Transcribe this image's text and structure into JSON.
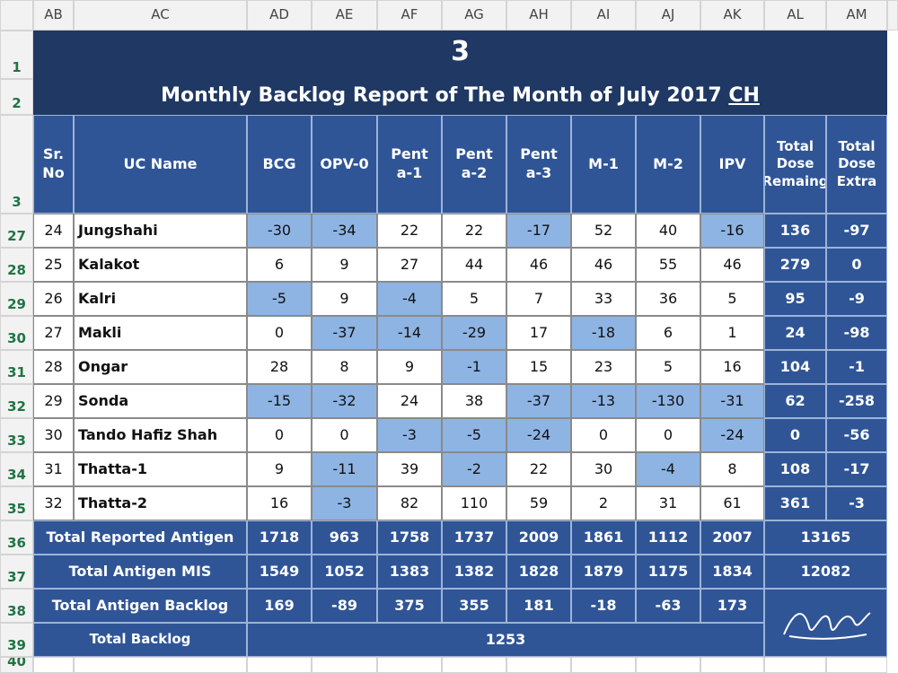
{
  "column_letters": [
    "AB",
    "AC",
    "AD",
    "AE",
    "AF",
    "AG",
    "AH",
    "AI",
    "AJ",
    "AK",
    "AL",
    "AM"
  ],
  "row_numbers": [
    1,
    2,
    3,
    27,
    28,
    29,
    30,
    31,
    32,
    33,
    34,
    35,
    36,
    37,
    38,
    39,
    40
  ],
  "title": "3",
  "subtitle": "Monthly Backlog Report of The Month of July 2017",
  "subtitle_suffix": "CH",
  "headers": [
    "Sr. No",
    "UC Name",
    "BCG",
    "OPV-0",
    "Penta-1",
    "Penta-2",
    "Penta-3",
    "M-1",
    "M-2",
    "IPV",
    "Total Dose Remaing",
    "Total Dose Extra"
  ],
  "rows": [
    {
      "sr": 24,
      "name": "Jungshahi",
      "values": [
        -30,
        -34,
        22,
        22,
        -17,
        52,
        40,
        -16
      ],
      "remaining": 136,
      "extra": -97
    },
    {
      "sr": 25,
      "name": "Kalakot",
      "values": [
        6,
        9,
        27,
        44,
        46,
        46,
        55,
        46
      ],
      "remaining": 279,
      "extra": 0
    },
    {
      "sr": 26,
      "name": "Kalri",
      "values": [
        -5,
        9,
        -4,
        5,
        7,
        33,
        36,
        5
      ],
      "remaining": 95,
      "extra": -9
    },
    {
      "sr": 27,
      "name": "Makli",
      "values": [
        0,
        -37,
        -14,
        -29,
        17,
        -18,
        6,
        1
      ],
      "remaining": 24,
      "extra": -98
    },
    {
      "sr": 28,
      "name": "Ongar",
      "values": [
        28,
        8,
        9,
        -1,
        15,
        23,
        5,
        16
      ],
      "remaining": 104,
      "extra": -1
    },
    {
      "sr": 29,
      "name": "Sonda",
      "values": [
        -15,
        -32,
        24,
        38,
        -37,
        -13,
        -130,
        -31
      ],
      "remaining": 62,
      "extra": -258
    },
    {
      "sr": 30,
      "name": "Tando Hafiz Shah",
      "values": [
        0,
        0,
        -3,
        -5,
        -24,
        0,
        0,
        -24
      ],
      "remaining": 0,
      "extra": -56
    },
    {
      "sr": 31,
      "name": "Thatta-1",
      "values": [
        9,
        -11,
        39,
        -2,
        22,
        30,
        -4,
        8
      ],
      "remaining": 108,
      "extra": -17
    },
    {
      "sr": 32,
      "name": "Thatta-2",
      "values": [
        16,
        -3,
        82,
        110,
        59,
        2,
        31,
        61
      ],
      "remaining": 361,
      "extra": -3
    }
  ],
  "totals": [
    {
      "label": "Total Reported Antigen",
      "values": [
        1718,
        963,
        1758,
        1737,
        2009,
        1861,
        1112,
        2007
      ],
      "total": 13165
    },
    {
      "label": "Total Antigen MIS",
      "values": [
        1549,
        1052,
        1383,
        1382,
        1828,
        1879,
        1175,
        1834
      ],
      "total": 12082
    },
    {
      "label": "Total Antigen Backlog",
      "values": [
        169,
        -89,
        375,
        355,
        181,
        -18,
        -63,
        173
      ]
    }
  ],
  "total_backlog": {
    "label": "Total Backlog",
    "value": 1253
  }
}
